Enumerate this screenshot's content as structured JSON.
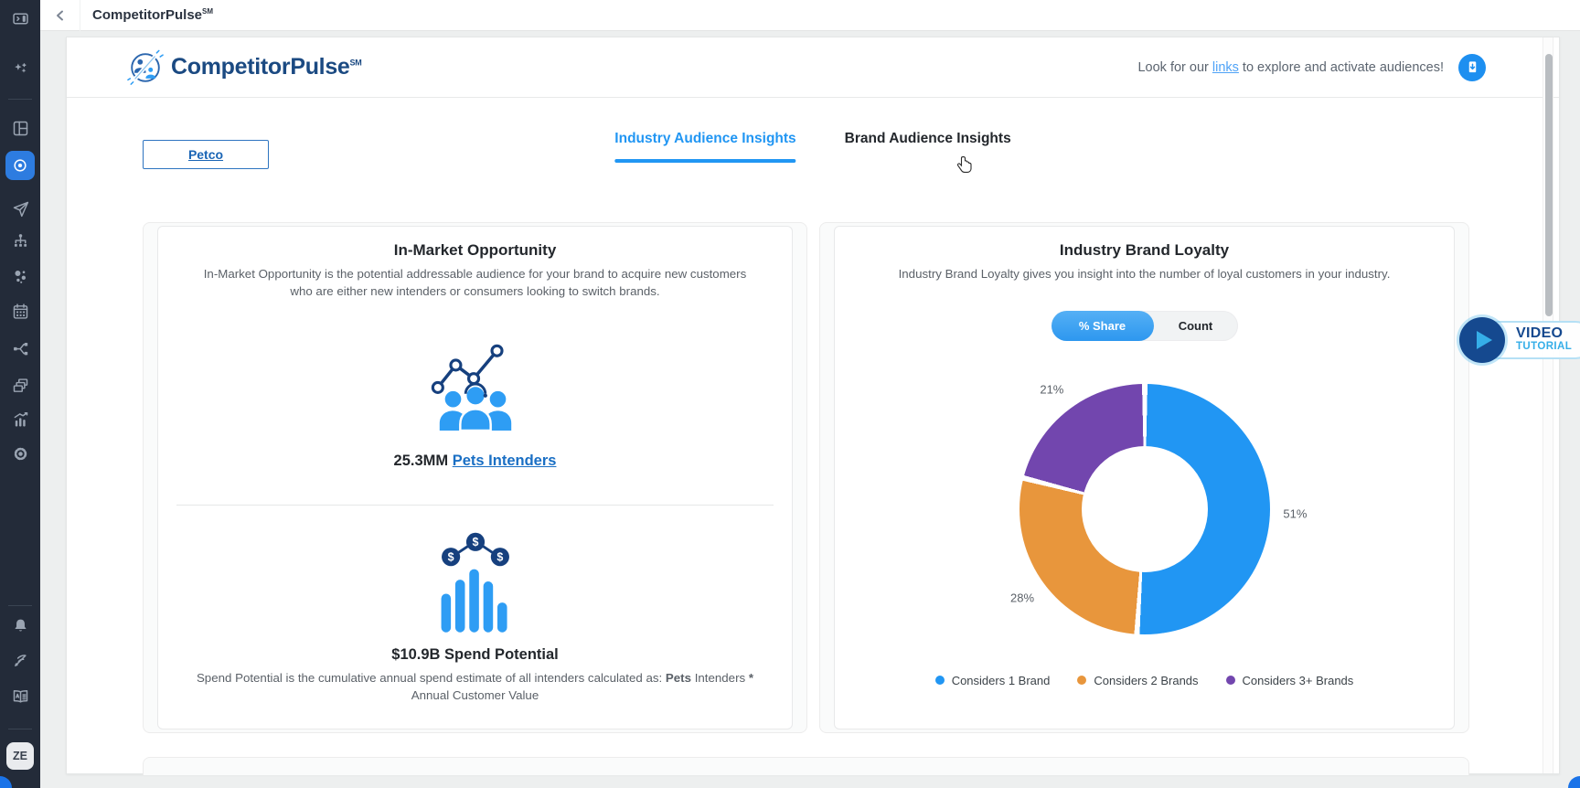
{
  "topbar": {
    "title": "CompetitorPulse",
    "title_sup": "SM",
    "back_icon": "chevron-left-icon"
  },
  "sidebar": {
    "avatar_initials": "ZE",
    "active_icon": "target-icon",
    "icons": [
      "panel-toggle-icon",
      "sparkles-icon",
      "dashboard-icon",
      "target-icon",
      "send-icon",
      "hierarchy-icon",
      "segments-icon",
      "calendar-icon",
      "workflow-icon",
      "windows-icon",
      "analytics-icon",
      "gear-icon",
      "bell-icon",
      "signal-icon",
      "book-icon"
    ]
  },
  "header": {
    "logo_text": "CompetitorPulse",
    "logo_sup": "SM",
    "note_prefix": "Look for our ",
    "note_link": "links",
    "note_suffix": " to explore and activate audiences!",
    "download_icon": "document-download-icon"
  },
  "brand_button_label": "Petco",
  "tabs": {
    "items": [
      {
        "label": "Industry Audience Insights",
        "active": true
      },
      {
        "label": "Brand Audience Insights",
        "active": false
      }
    ]
  },
  "in_market": {
    "title": "In-Market Opportunity",
    "description": "In-Market Opportunity is the potential addressable audience for your brand to acquire new customers who are either new intenders or consumers looking to switch brands.",
    "intenders_value": "25.3MM",
    "intenders_link": "Pets Intenders",
    "spend_value": "$10.9B Spend Potential",
    "spend_desc_prefix": "Spend Potential is the cumulative annual spend estimate of all intenders calculated as: ",
    "spend_desc_bold1": "Pets",
    "spend_desc_mid": " Intenders ",
    "spend_desc_bold2": "*",
    "spend_desc_suffix": " Annual Customer Value"
  },
  "brand_loyalty": {
    "title": "Industry Brand Loyalty",
    "description": "Industry Brand Loyalty gives you insight into the number of loyal customers in your industry.",
    "toggle_options": [
      "% Share",
      "Count"
    ],
    "toggle_active": "% Share"
  },
  "chart_data": {
    "type": "pie",
    "donut": true,
    "title": "Industry Brand Loyalty",
    "labels": [
      "Considers 1 Brand",
      "Considers 2 Brands",
      "Considers 3+ Brands"
    ],
    "values": [
      51,
      28,
      21
    ],
    "unit": "%",
    "colors": [
      "#2196f3",
      "#e8963c",
      "#7246ae"
    ],
    "start": "top",
    "direction": "clockwise",
    "legend_position": "bottom"
  },
  "video_tutorial": {
    "line1": "VIDEO",
    "line2": "TUTORIAL",
    "play_icon": "play-icon"
  },
  "colors": {
    "accent_blue": "#2196f3",
    "navy": "#15498f",
    "icon_blue": "#2e9df4",
    "orange": "#e8963c",
    "purple": "#7246ae",
    "sidebar_bg": "#232b39",
    "link_blue": "#1a6fc4",
    "light_blue": "#35aee8"
  }
}
